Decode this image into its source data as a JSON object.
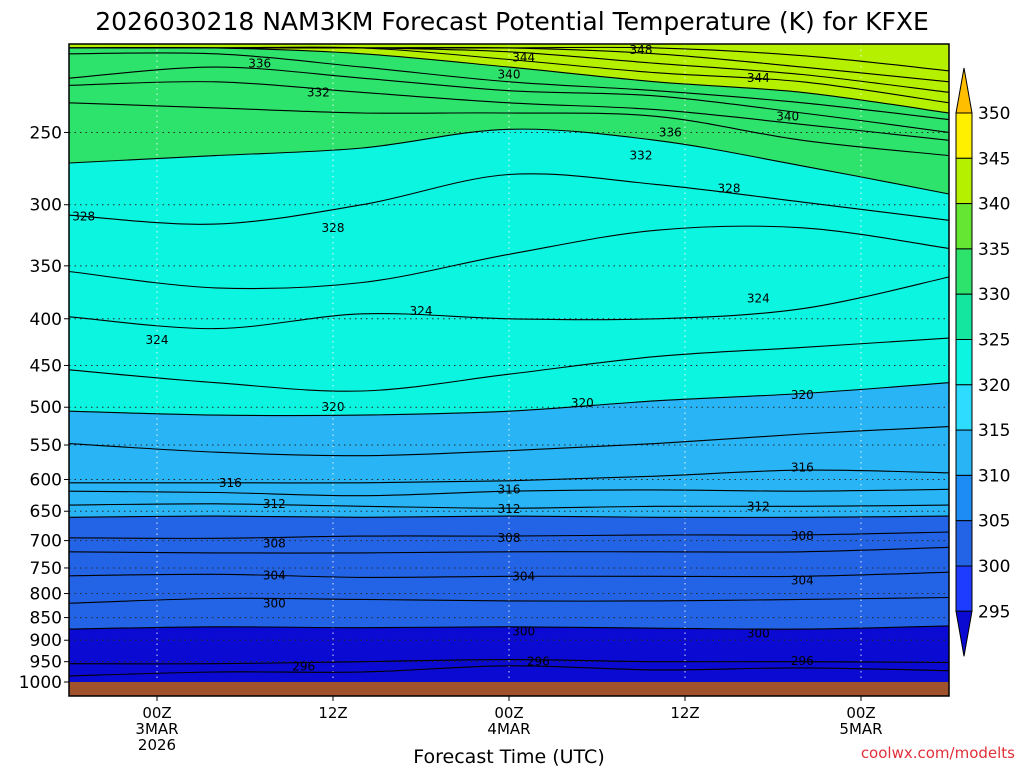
{
  "credit": "coolwx.com/modelts",
  "chart_data": {
    "type": "contour",
    "title": "2026030218 NAM3KM Forecast Potential Temperature (K) for KFXE",
    "xlabel": "Forecast Time (UTC)",
    "ylabel": "",
    "x_unit": "forecast hour (from 2026-03-02 18Z)",
    "xlim": [
      0,
      60
    ],
    "y_unit": "hPa",
    "ylim": [
      1000,
      200
    ],
    "y_ticks": [
      250,
      300,
      350,
      400,
      450,
      500,
      550,
      600,
      650,
      700,
      750,
      800,
      850,
      900,
      950,
      1000
    ],
    "y_tick_labels": [
      "250",
      "300",
      "350",
      "400",
      "450",
      "500",
      "550",
      "600",
      "650",
      "700",
      "750",
      "800",
      "850",
      "900",
      "950",
      "1000"
    ],
    "x_ticks": [
      {
        "hour": 6,
        "lines": [
          "00Z",
          "3MAR",
          "2026"
        ]
      },
      {
        "hour": 18,
        "lines": [
          "12Z"
        ]
      },
      {
        "hour": 30,
        "lines": [
          "00Z",
          "4MAR"
        ]
      },
      {
        "hour": 42,
        "lines": [
          "12Z"
        ]
      },
      {
        "hour": 54,
        "lines": [
          "00Z",
          "5MAR"
        ]
      }
    ],
    "grid": true,
    "colorbar": {
      "levels": [
        295,
        300,
        305,
        310,
        315,
        320,
        325,
        330,
        335,
        340,
        345,
        350
      ],
      "labels": [
        "295",
        "300",
        "305",
        "310",
        "315",
        "320",
        "325",
        "330",
        "335",
        "340",
        "345",
        "350"
      ],
      "colors": [
        "#0a0ad2",
        "#1e3cff",
        "#2364e6",
        "#1e8cf5",
        "#28b4f5",
        "#2ddcff",
        "#0cf5e0",
        "#14e6a0",
        "#2de36c",
        "#64e632",
        "#b4f000",
        "#fff000",
        "#ffbe00"
      ]
    },
    "contour_lines": [
      {
        "value": 296,
        "pressures": [
          985,
          975,
          975,
          960,
          970,
          965,
          972
        ]
      },
      {
        "value": 298,
        "pressures": [
          955,
          955,
          950,
          945,
          950,
          950,
          952
        ]
      },
      {
        "value": 300,
        "pressures": [
          875,
          870,
          872,
          870,
          873,
          875,
          868
        ]
      },
      {
        "value": 302,
        "pressures": [
          820,
          810,
          812,
          815,
          815,
          812,
          808
        ]
      },
      {
        "value": 304,
        "pressures": [
          765,
          762,
          768,
          766,
          766,
          766,
          758
        ]
      },
      {
        "value": 306,
        "pressures": [
          720,
          722,
          722,
          720,
          720,
          720,
          712
        ]
      },
      {
        "value": 308,
        "pressures": [
          695,
          696,
          692,
          692,
          690,
          690,
          685
        ]
      },
      {
        "value": 310,
        "pressures": [
          660,
          658,
          660,
          658,
          660,
          660,
          658
        ]
      },
      {
        "value": 312,
        "pressures": [
          640,
          638,
          642,
          645,
          642,
          642,
          640
        ]
      },
      {
        "value": 314,
        "pressures": [
          618,
          620,
          625,
          618,
          616,
          618,
          615
        ]
      },
      {
        "value": 316,
        "pressures": [
          605,
          605,
          605,
          602,
          595,
          586,
          590
        ]
      },
      {
        "value": 318,
        "pressures": [
          548,
          560,
          565,
          558,
          548,
          535,
          525
        ]
      },
      {
        "value": 320,
        "pressures": [
          505,
          510,
          510,
          505,
          492,
          483,
          470
        ]
      },
      {
        "value": 322,
        "pressures": [
          455,
          470,
          480,
          460,
          440,
          430,
          420
        ]
      },
      {
        "value": 324,
        "pressures": [
          398,
          410,
          395,
          400,
          400,
          390,
          360
        ]
      },
      {
        "value": 326,
        "pressures": [
          355,
          370,
          365,
          340,
          320,
          318,
          335
        ]
      },
      {
        "value": 328,
        "pressures": [
          308,
          315,
          300,
          278,
          285,
          298,
          312
        ]
      },
      {
        "value": 330,
        "pressures": [
          270,
          265,
          260,
          248,
          255,
          272,
          292
        ]
      },
      {
        "value": 332,
        "pressures": [
          232,
          235,
          238,
          238,
          240,
          255,
          265
        ]
      },
      {
        "value": 334,
        "pressures": [
          222,
          220,
          226,
          232,
          236,
          245,
          255
        ]
      },
      {
        "value": 336,
        "pressures": [
          218,
          212,
          218,
          225,
          228,
          238,
          250
        ]
      },
      {
        "value": 338,
        "pressures": [
          205,
          205,
          212,
          220,
          225,
          232,
          242
        ]
      },
      {
        "value": 340,
        "pressures": [
          202,
          202,
          205,
          212,
          220,
          226,
          238
        ]
      },
      {
        "value": 342,
        "pressures": [
          202,
          202,
          202,
          208,
          215,
          220,
          232
        ]
      },
      {
        "value": 344,
        "pressures": [
          202,
          202,
          202,
          204,
          210,
          216,
          226
        ]
      },
      {
        "value": 346,
        "pressures": [
          202,
          202,
          202,
          202,
          205,
          212,
          220
        ]
      },
      {
        "value": 348,
        "pressures": [
          202,
          202,
          202,
          202,
          202,
          206,
          214
        ]
      }
    ],
    "contour_hours": [
      0,
      10,
      20,
      30,
      40,
      50,
      60
    ],
    "contour_labels": [
      {
        "text": "336",
        "hour": 13,
        "pressure": 210
      },
      {
        "text": "344",
        "hour": 31,
        "pressure": 207
      },
      {
        "text": "348",
        "hour": 39,
        "pressure": 203
      },
      {
        "text": "340",
        "hour": 30,
        "pressure": 216
      },
      {
        "text": "344",
        "hour": 47,
        "pressure": 218
      },
      {
        "text": "332",
        "hour": 17,
        "pressure": 226
      },
      {
        "text": "340",
        "hour": 49,
        "pressure": 240
      },
      {
        "text": "336",
        "hour": 41,
        "pressure": 250
      },
      {
        "text": "332",
        "hour": 39,
        "pressure": 265
      },
      {
        "text": "328",
        "hour": 45,
        "pressure": 288
      },
      {
        "text": "328",
        "hour": 1,
        "pressure": 309
      },
      {
        "text": "328",
        "hour": 18,
        "pressure": 318
      },
      {
        "text": "324",
        "hour": 24,
        "pressure": 392
      },
      {
        "text": "324",
        "hour": 47,
        "pressure": 380
      },
      {
        "text": "324",
        "hour": 6,
        "pressure": 422
      },
      {
        "text": "320",
        "hour": 35,
        "pressure": 495
      },
      {
        "text": "320",
        "hour": 18,
        "pressure": 500
      },
      {
        "text": "320",
        "hour": 50,
        "pressure": 485
      },
      {
        "text": "316",
        "hour": 11,
        "pressure": 605
      },
      {
        "text": "316",
        "hour": 30,
        "pressure": 615
      },
      {
        "text": "316",
        "hour": 50,
        "pressure": 582
      },
      {
        "text": "312",
        "hour": 14,
        "pressure": 638
      },
      {
        "text": "312",
        "hour": 30,
        "pressure": 646
      },
      {
        "text": "312",
        "hour": 47,
        "pressure": 642
      },
      {
        "text": "308",
        "hour": 14,
        "pressure": 705
      },
      {
        "text": "308",
        "hour": 30,
        "pressure": 695
      },
      {
        "text": "308",
        "hour": 50,
        "pressure": 692
      },
      {
        "text": "304",
        "hour": 14,
        "pressure": 764
      },
      {
        "text": "304",
        "hour": 31,
        "pressure": 766
      },
      {
        "text": "304",
        "hour": 50,
        "pressure": 774
      },
      {
        "text": "300",
        "hour": 14,
        "pressure": 820
      },
      {
        "text": "300",
        "hour": 31,
        "pressure": 880
      },
      {
        "text": "300",
        "hour": 47,
        "pressure": 885
      },
      {
        "text": "296",
        "hour": 16,
        "pressure": 962
      },
      {
        "text": "296",
        "hour": 32,
        "pressure": 950
      },
      {
        "text": "296",
        "hour": 50,
        "pressure": 948
      }
    ],
    "terrain_color": "#a0522d"
  }
}
